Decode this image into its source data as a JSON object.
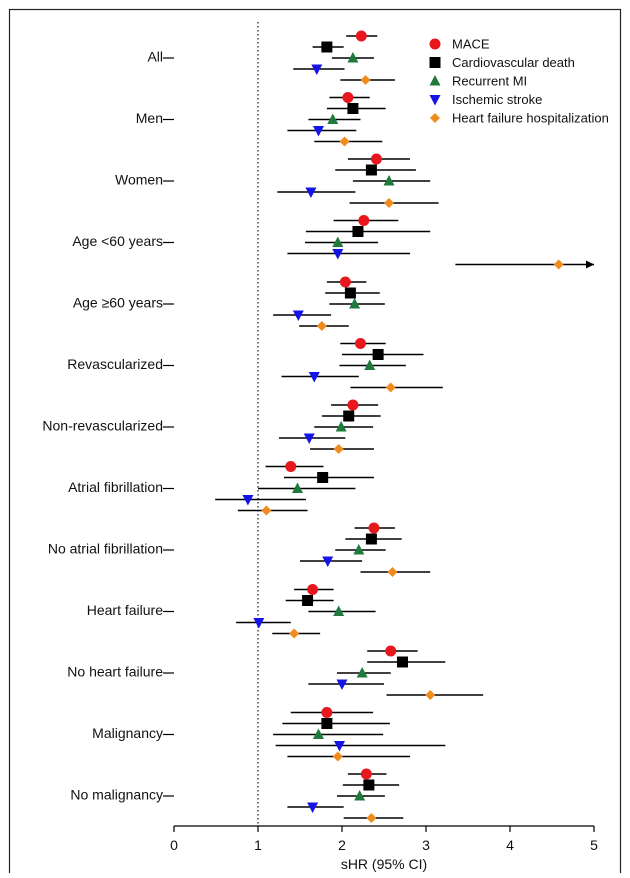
{
  "chart_data": {
    "type": "forest",
    "xlabel": "sHR (95% CI)",
    "xlim": [
      0,
      5
    ],
    "xticks": [
      0,
      1,
      2,
      3,
      4,
      5
    ],
    "reference_line": 1,
    "legend_position": "top-right",
    "series": [
      {
        "name": "MACE",
        "color": "#e8171e",
        "marker": "circle"
      },
      {
        "name": "Cardiovascular death",
        "color": "#000000",
        "marker": "square"
      },
      {
        "name": "Recurrent MI",
        "color": "#1f7a3c",
        "marker": "triangle-up"
      },
      {
        "name": "Ischemic stroke",
        "color": "#1414e6",
        "marker": "triangle-down"
      },
      {
        "name": "Heart failure hospitalization",
        "color": "#f08c1e",
        "marker": "diamond"
      }
    ],
    "groups": [
      {
        "label": "All",
        "estimates": [
          {
            "hr": 2.23,
            "lo": 2.05,
            "hi": 2.42
          },
          {
            "hr": 1.82,
            "lo": 1.65,
            "hi": 2.02
          },
          {
            "hr": 2.13,
            "lo": 1.88,
            "hi": 2.38
          },
          {
            "hr": 1.7,
            "lo": 1.42,
            "hi": 2.03
          },
          {
            "hr": 2.28,
            "lo": 1.98,
            "hi": 2.63
          }
        ]
      },
      {
        "label": "Men",
        "estimates": [
          {
            "hr": 2.07,
            "lo": 1.85,
            "hi": 2.33
          },
          {
            "hr": 2.13,
            "lo": 1.82,
            "hi": 2.52
          },
          {
            "hr": 1.89,
            "lo": 1.6,
            "hi": 2.22
          },
          {
            "hr": 1.72,
            "lo": 1.35,
            "hi": 2.17
          },
          {
            "hr": 2.03,
            "lo": 1.67,
            "hi": 2.48
          }
        ]
      },
      {
        "label": "Women",
        "estimates": [
          {
            "hr": 2.41,
            "lo": 2.07,
            "hi": 2.81
          },
          {
            "hr": 2.35,
            "lo": 1.92,
            "hi": 2.88
          },
          {
            "hr": 2.56,
            "lo": 2.13,
            "hi": 3.05
          },
          {
            "hr": 1.63,
            "lo": 1.23,
            "hi": 2.16
          },
          {
            "hr": 2.56,
            "lo": 2.09,
            "hi": 3.15
          }
        ]
      },
      {
        "label": "Age <60 years",
        "estimates": [
          {
            "hr": 2.26,
            "lo": 1.9,
            "hi": 2.67
          },
          {
            "hr": 2.19,
            "lo": 1.57,
            "hi": 3.05
          },
          {
            "hr": 1.95,
            "lo": 1.56,
            "hi": 2.43
          },
          {
            "hr": 1.95,
            "lo": 1.35,
            "hi": 2.81
          },
          {
            "hr": 4.58,
            "lo": 3.35,
            "hi": 5.0
          }
        ]
      },
      {
        "label": "Age ≥60 years",
        "estimates": [
          {
            "hr": 2.04,
            "lo": 1.82,
            "hi": 2.29
          },
          {
            "hr": 2.1,
            "lo": 1.8,
            "hi": 2.45
          },
          {
            "hr": 2.15,
            "lo": 1.85,
            "hi": 2.51
          },
          {
            "hr": 1.48,
            "lo": 1.18,
            "hi": 1.87
          },
          {
            "hr": 1.76,
            "lo": 1.49,
            "hi": 2.08
          }
        ]
      },
      {
        "label": "Revascularized",
        "estimates": [
          {
            "hr": 2.22,
            "lo": 1.98,
            "hi": 2.52
          },
          {
            "hr": 2.43,
            "lo": 2.0,
            "hi": 2.97
          },
          {
            "hr": 2.33,
            "lo": 1.97,
            "hi": 2.76
          },
          {
            "hr": 1.67,
            "lo": 1.28,
            "hi": 2.2
          },
          {
            "hr": 2.58,
            "lo": 2.1,
            "hi": 3.2
          }
        ]
      },
      {
        "label": "Non-revascularized",
        "estimates": [
          {
            "hr": 2.13,
            "lo": 1.87,
            "hi": 2.43
          },
          {
            "hr": 2.08,
            "lo": 1.76,
            "hi": 2.46
          },
          {
            "hr": 1.99,
            "lo": 1.67,
            "hi": 2.37
          },
          {
            "hr": 1.61,
            "lo": 1.25,
            "hi": 2.04
          },
          {
            "hr": 1.96,
            "lo": 1.62,
            "hi": 2.38
          }
        ]
      },
      {
        "label": "Atrial fibrillation",
        "estimates": [
          {
            "hr": 1.39,
            "lo": 1.09,
            "hi": 1.78
          },
          {
            "hr": 1.77,
            "lo": 1.31,
            "hi": 2.38
          },
          {
            "hr": 1.47,
            "lo": 1.0,
            "hi": 2.16
          },
          {
            "hr": 0.88,
            "lo": 0.49,
            "hi": 1.57
          },
          {
            "hr": 1.1,
            "lo": 0.76,
            "hi": 1.59
          }
        ]
      },
      {
        "label": "No atrial fibrillation",
        "estimates": [
          {
            "hr": 2.38,
            "lo": 2.15,
            "hi": 2.63
          },
          {
            "hr": 2.35,
            "lo": 2.04,
            "hi": 2.71
          },
          {
            "hr": 2.2,
            "lo": 1.92,
            "hi": 2.52
          },
          {
            "hr": 1.83,
            "lo": 1.5,
            "hi": 2.24
          },
          {
            "hr": 2.6,
            "lo": 2.22,
            "hi": 3.05
          }
        ]
      },
      {
        "label": "Heart failure",
        "estimates": [
          {
            "hr": 1.65,
            "lo": 1.43,
            "hi": 1.9
          },
          {
            "hr": 1.59,
            "lo": 1.33,
            "hi": 1.9
          },
          {
            "hr": 1.96,
            "lo": 1.6,
            "hi": 2.4
          },
          {
            "hr": 1.01,
            "lo": 0.74,
            "hi": 1.39
          },
          {
            "hr": 1.43,
            "lo": 1.17,
            "hi": 1.74
          }
        ]
      },
      {
        "label": "No heart failure",
        "estimates": [
          {
            "hr": 2.58,
            "lo": 2.3,
            "hi": 2.9
          },
          {
            "hr": 2.72,
            "lo": 2.3,
            "hi": 3.23
          },
          {
            "hr": 2.24,
            "lo": 1.94,
            "hi": 2.58
          },
          {
            "hr": 2.0,
            "lo": 1.6,
            "hi": 2.5
          },
          {
            "hr": 3.05,
            "lo": 2.53,
            "hi": 3.68
          }
        ]
      },
      {
        "label": "Malignancy",
        "estimates": [
          {
            "hr": 1.82,
            "lo": 1.39,
            "hi": 2.37
          },
          {
            "hr": 1.82,
            "lo": 1.29,
            "hi": 2.57
          },
          {
            "hr": 1.72,
            "lo": 1.18,
            "hi": 2.49
          },
          {
            "hr": 1.97,
            "lo": 1.21,
            "hi": 3.23
          },
          {
            "hr": 1.95,
            "lo": 1.35,
            "hi": 2.81
          }
        ]
      },
      {
        "label": "No malignancy",
        "estimates": [
          {
            "hr": 2.29,
            "lo": 2.07,
            "hi": 2.53
          },
          {
            "hr": 2.32,
            "lo": 2.01,
            "hi": 2.68
          },
          {
            "hr": 2.21,
            "lo": 1.94,
            "hi": 2.51
          },
          {
            "hr": 1.65,
            "lo": 1.35,
            "hi": 2.02
          },
          {
            "hr": 2.35,
            "lo": 2.02,
            "hi": 2.73
          }
        ]
      }
    ]
  }
}
